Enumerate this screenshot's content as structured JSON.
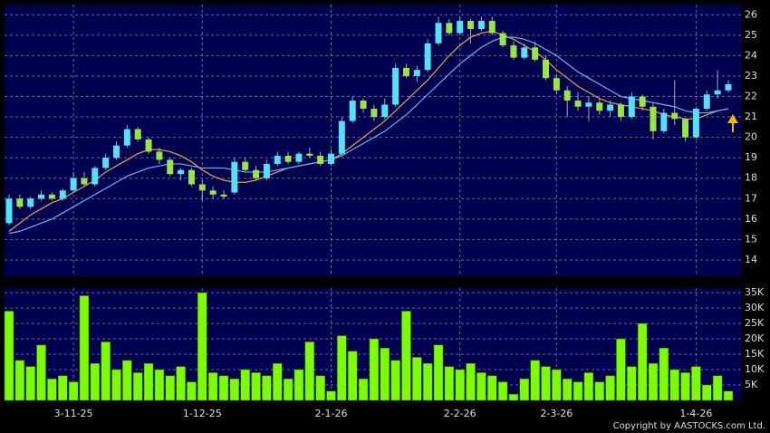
{
  "chart_data": [
    {
      "type": "candlestick",
      "categories": [
        null,
        null,
        null,
        null,
        null,
        null,
        "3-11-25",
        null,
        null,
        null,
        null,
        null,
        null,
        null,
        null,
        null,
        null,
        null,
        "1-12-25",
        null,
        null,
        null,
        null,
        null,
        null,
        null,
        null,
        null,
        null,
        null,
        "2-1-26",
        null,
        null,
        null,
        null,
        null,
        null,
        null,
        null,
        null,
        null,
        null,
        "2-2-26",
        null,
        null,
        null,
        null,
        null,
        null,
        null,
        null,
        "2-3-26",
        null,
        null,
        null,
        null,
        null,
        null,
        null,
        null,
        null,
        null,
        null,
        null,
        "1-4-26",
        null,
        null,
        null
      ],
      "open": [
        15.8,
        17.0,
        16.6,
        17.0,
        17.2,
        17.0,
        17.4,
        18.0,
        17.7,
        18.5,
        19.0,
        19.6,
        20.4,
        19.9,
        19.3,
        18.9,
        18.2,
        18.4,
        17.7,
        17.4,
        17.2,
        17.3,
        18.8,
        18.4,
        18.0,
        18.7,
        19.1,
        18.8,
        19.2,
        19.1,
        18.7,
        19.2,
        20.8,
        21.8,
        21.4,
        21.0,
        21.6,
        23.4,
        23.0,
        23.3,
        24.6,
        25.6,
        25.1,
        25.7,
        25.3,
        25.7,
        25.1,
        24.5,
        23.9,
        24.4,
        23.8,
        22.9,
        22.3,
        21.8,
        21.5,
        21.7,
        21.3,
        21.6,
        21.0,
        22.0,
        21.5,
        20.3,
        21.2,
        20.9,
        20.0,
        21.4,
        22.1,
        22.3
      ],
      "high": [
        17.2,
        17.2,
        17.1,
        17.4,
        17.3,
        17.5,
        18.3,
        18.3,
        18.6,
        19.2,
        19.8,
        20.6,
        20.5,
        20.0,
        19.5,
        19.0,
        18.5,
        18.5,
        17.9,
        17.6,
        17.4,
        19.0,
        19.0,
        18.6,
        18.9,
        19.3,
        19.3,
        19.3,
        19.5,
        19.3,
        19.4,
        21.0,
        22.0,
        21.9,
        21.6,
        21.9,
        23.6,
        23.6,
        23.5,
        24.8,
        25.9,
        25.8,
        25.9,
        25.8,
        25.9,
        25.9,
        25.2,
        24.7,
        24.6,
        24.7,
        24.0,
        23.1,
        22.5,
        22.2,
        22.0,
        21.9,
        21.8,
        21.7,
        22.2,
        22.1,
        21.7,
        21.4,
        22.8,
        20.9,
        21.5,
        22.3,
        23.3,
        22.8
      ],
      "low": [
        15.7,
        16.5,
        16.5,
        16.9,
        16.9,
        16.9,
        17.3,
        17.6,
        17.6,
        18.4,
        18.9,
        19.5,
        19.8,
        19.2,
        18.7,
        18.1,
        17.9,
        17.6,
        16.9,
        17.0,
        17.0,
        17.2,
        18.3,
        17.9,
        17.9,
        18.6,
        18.7,
        18.7,
        19.0,
        18.6,
        18.6,
        19.1,
        20.7,
        21.2,
        20.8,
        20.9,
        21.5,
        22.9,
        22.7,
        23.2,
        24.5,
        25.0,
        25.0,
        24.6,
        25.2,
        25.0,
        24.4,
        23.8,
        23.8,
        23.7,
        22.8,
        22.1,
        21.0,
        21.3,
        20.8,
        21.1,
        21.0,
        20.8,
        20.9,
        21.3,
        19.9,
        20.2,
        20.6,
        19.8,
        19.9,
        21.3,
        21.9,
        22.2
      ],
      "close": [
        17.0,
        16.6,
        17.0,
        17.2,
        17.0,
        17.4,
        18.0,
        17.7,
        18.5,
        19.0,
        19.6,
        20.4,
        19.9,
        19.3,
        18.9,
        18.2,
        18.4,
        17.7,
        17.4,
        17.2,
        17.1,
        18.8,
        18.4,
        18.0,
        18.7,
        19.1,
        18.8,
        19.2,
        19.1,
        18.7,
        19.2,
        20.8,
        21.8,
        21.4,
        21.0,
        21.6,
        23.4,
        23.0,
        23.3,
        24.6,
        25.6,
        25.1,
        25.7,
        25.3,
        25.7,
        25.1,
        24.5,
        23.9,
        24.4,
        23.8,
        22.9,
        22.3,
        21.8,
        21.5,
        21.7,
        21.3,
        21.6,
        21.0,
        22.0,
        21.5,
        20.3,
        21.2,
        20.9,
        20.0,
        21.4,
        22.1,
        22.3,
        22.6
      ],
      "up_color": "#4fe3f5",
      "down_color": "#96e83c",
      "overlays": [
        {
          "color": "#f0a040",
          "values": [
            15.4,
            15.8,
            16.2,
            16.5,
            16.8,
            17.0,
            17.3,
            17.6,
            17.9,
            18.3,
            18.6,
            18.9,
            19.2,
            19.4,
            19.4,
            19.3,
            19.1,
            18.8,
            18.4,
            18.1,
            17.9,
            17.8,
            17.8,
            17.9,
            18.1,
            18.3,
            18.5,
            18.6,
            18.7,
            18.8,
            18.9,
            19.2,
            19.6,
            20.0,
            20.4,
            20.8,
            21.3,
            21.8,
            22.3,
            22.8,
            23.4,
            24.0,
            24.5,
            24.9,
            25.1,
            25.2,
            25.0,
            24.8,
            24.5,
            24.2,
            23.8,
            23.3,
            22.9,
            22.5,
            22.2,
            21.9,
            21.7,
            21.6,
            21.5,
            21.4,
            21.3,
            21.1,
            21.0,
            20.9,
            20.9,
            21.1,
            21.3,
            21.4
          ]
        },
        {
          "color": "#5fb8f0",
          "values": [
            15.3,
            15.4,
            15.6,
            15.8,
            16.0,
            16.3,
            16.6,
            16.9,
            17.2,
            17.5,
            17.8,
            18.1,
            18.3,
            18.5,
            18.6,
            18.7,
            18.7,
            18.6,
            18.5,
            18.5,
            18.5,
            18.4,
            18.3,
            18.3,
            18.3,
            18.4,
            18.5,
            18.6,
            18.7,
            18.8,
            18.9,
            19.1,
            19.4,
            19.7,
            20.0,
            20.3,
            20.7,
            21.1,
            21.6,
            22.1,
            22.6,
            23.1,
            23.6,
            24.0,
            24.4,
            24.7,
            24.9,
            24.9,
            24.8,
            24.6,
            24.3,
            24.0,
            23.6,
            23.2,
            22.9,
            22.6,
            22.3,
            22.0,
            21.9,
            21.8,
            21.7,
            21.6,
            21.5,
            21.3,
            21.2,
            21.2,
            21.3,
            21.4
          ]
        }
      ],
      "ylim": [
        13.2,
        26.5
      ],
      "yticks": [
        14,
        15,
        16,
        17,
        18,
        19,
        20,
        21,
        22,
        23,
        24,
        25,
        26
      ],
      "grid": true
    },
    {
      "type": "bar",
      "color": "#7cfc00",
      "values": [
        29000,
        13000,
        11000,
        18000,
        7000,
        8000,
        6000,
        34000,
        12000,
        19000,
        10000,
        13000,
        9000,
        12000,
        10000,
        8000,
        11000,
        6000,
        35000,
        9000,
        8000,
        7000,
        10000,
        9000,
        8000,
        12000,
        7000,
        10000,
        19000,
        8000,
        3000,
        21000,
        16000,
        7000,
        20000,
        17000,
        13000,
        29000,
        14000,
        12000,
        18000,
        11000,
        10000,
        12000,
        9000,
        8000,
        6000,
        2000,
        7000,
        13000,
        11000,
        10000,
        7000,
        6000,
        9000,
        6000,
        8000,
        20000,
        11000,
        25000,
        12000,
        17000,
        10000,
        9000,
        11000,
        5000,
        8000,
        3000
      ],
      "ylim": [
        0,
        36500
      ],
      "yticks": [
        {
          "value": 5000,
          "label": "5K"
        },
        {
          "value": 10000,
          "label": "10K"
        },
        {
          "value": 15000,
          "label": "15K"
        },
        {
          "value": 20000,
          "label": "20K"
        },
        {
          "value": 25000,
          "label": "25K"
        },
        {
          "value": 30000,
          "label": "30K"
        },
        {
          "value": 35000,
          "label": "35K"
        }
      ],
      "grid": true
    }
  ],
  "copyright": "Copyright by AASTOCKS.com Ltd."
}
